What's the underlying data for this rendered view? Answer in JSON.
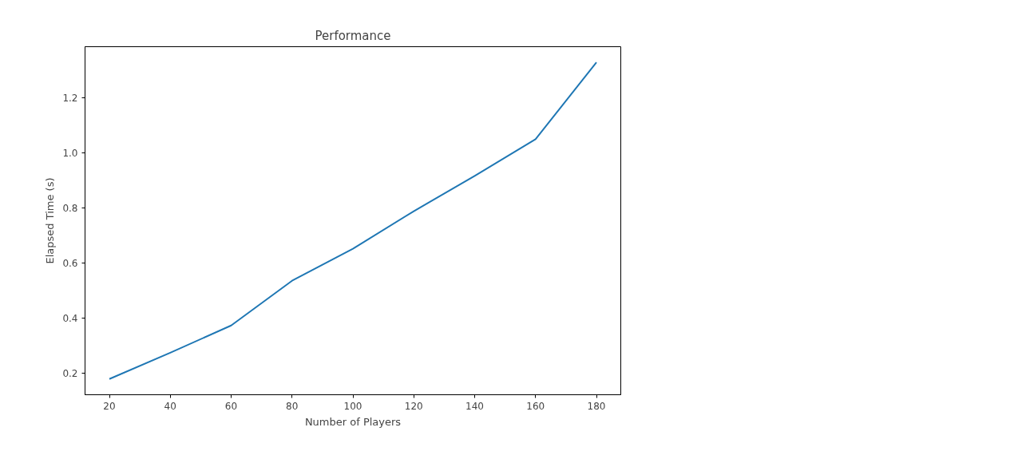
{
  "chart_data": {
    "type": "line",
    "title": "Performance",
    "xlabel": "Number of Players",
    "ylabel": "Elapsed Time (s)",
    "x": [
      20,
      40,
      60,
      80,
      100,
      120,
      140,
      160,
      180
    ],
    "series": [
      {
        "color": "#1f77b4",
        "values": [
          0.18,
          0.275,
          0.374,
          0.536,
          0.652,
          0.788,
          0.916,
          1.049,
          1.327
        ]
      }
    ],
    "xlim": [
      12,
      188
    ],
    "ylim": [
      0.123,
      1.384
    ],
    "xticks": [
      20,
      40,
      60,
      80,
      100,
      120,
      140,
      160,
      180
    ],
    "yticks": [
      {
        "value": 0.2,
        "label": "0.2"
      },
      {
        "value": 0.4,
        "label": "0.4"
      },
      {
        "value": 0.6,
        "label": "0.6"
      },
      {
        "value": 0.8,
        "label": "0.8"
      },
      {
        "value": 1.0,
        "label": "1.0"
      },
      {
        "value": 1.2,
        "label": "1.2"
      }
    ],
    "grid": false,
    "marker": "none",
    "line_style": "solid"
  }
}
